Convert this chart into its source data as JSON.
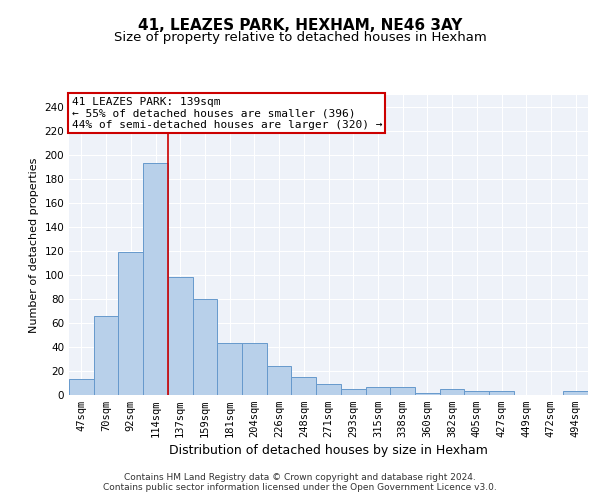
{
  "title1": "41, LEAZES PARK, HEXHAM, NE46 3AY",
  "title2": "Size of property relative to detached houses in Hexham",
  "xlabel": "Distribution of detached houses by size in Hexham",
  "ylabel": "Number of detached properties",
  "categories": [
    "47sqm",
    "70sqm",
    "92sqm",
    "114sqm",
    "137sqm",
    "159sqm",
    "181sqm",
    "204sqm",
    "226sqm",
    "248sqm",
    "271sqm",
    "293sqm",
    "315sqm",
    "338sqm",
    "360sqm",
    "382sqm",
    "405sqm",
    "427sqm",
    "449sqm",
    "472sqm",
    "494sqm"
  ],
  "values": [
    13,
    66,
    119,
    193,
    98,
    80,
    43,
    43,
    24,
    15,
    9,
    5,
    7,
    7,
    2,
    5,
    3,
    3,
    0,
    0,
    3
  ],
  "bar_color": "#b8d0ea",
  "bar_edge_color": "#6699cc",
  "vline_x": 3.5,
  "vline_color": "#cc0000",
  "annotation_text": "41 LEAZES PARK: 139sqm\n← 55% of detached houses are smaller (396)\n44% of semi-detached houses are larger (320) →",
  "annotation_box_color": "white",
  "annotation_box_edge_color": "#cc0000",
  "ylim": [
    0,
    250
  ],
  "yticks": [
    0,
    20,
    40,
    60,
    80,
    100,
    120,
    140,
    160,
    180,
    200,
    220,
    240
  ],
  "footer_text": "Contains HM Land Registry data © Crown copyright and database right 2024.\nContains public sector information licensed under the Open Government Licence v3.0.",
  "background_color": "#eef2f9",
  "grid_color": "white",
  "title1_fontsize": 11,
  "title2_fontsize": 9.5,
  "xlabel_fontsize": 9,
  "ylabel_fontsize": 8,
  "tick_fontsize": 7.5,
  "annotation_fontsize": 8,
  "footer_fontsize": 6.5
}
